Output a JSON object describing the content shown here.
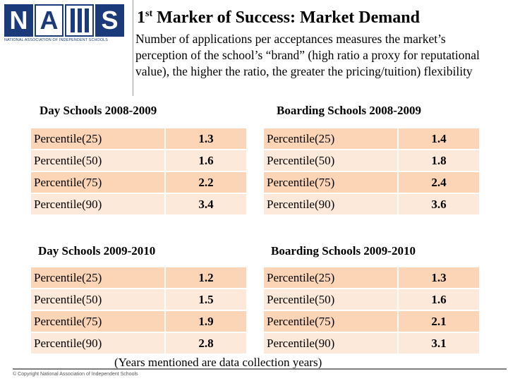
{
  "logo": {
    "letters": [
      "N",
      "A",
      "S"
    ],
    "tagline": "NATIONAL ASSOCIATION OF INDEPENDENT SCHOOLS"
  },
  "title": {
    "ordinal": "1",
    "suffix": "st",
    "rest": " Marker of Success: Market Demand"
  },
  "description": "Number of applications per acceptances measures the market’s perception of the school’s “brand” (high ratio a proxy for reputational value), the higher the ratio, the greater the pricing/tuition) flexibility",
  "sections": {
    "day_2008": {
      "label": "Day Schools  2008-2009",
      "rows": [
        {
          "label": "Percentile(25)",
          "value": "1.3"
        },
        {
          "label": "Percentile(50)",
          "value": "1.6"
        },
        {
          "label": "Percentile(75)",
          "value": "2.2"
        },
        {
          "label": "Percentile(90)",
          "value": "3.4"
        }
      ]
    },
    "boarding_2008": {
      "label": "Boarding Schools  2008-2009",
      "rows": [
        {
          "label": "Percentile(25)",
          "value": "1.4"
        },
        {
          "label": "Percentile(50)",
          "value": "1.8"
        },
        {
          "label": "Percentile(75)",
          "value": "2.4"
        },
        {
          "label": "Percentile(90)",
          "value": "3.6"
        }
      ]
    },
    "day_2009": {
      "label": "Day Schools  2009-2010",
      "rows": [
        {
          "label": "Percentile(25)",
          "value": "1.2"
        },
        {
          "label": "Percentile(50)",
          "value": "1.5"
        },
        {
          "label": "Percentile(75)",
          "value": "1.9"
        },
        {
          "label": "Percentile(90)",
          "value": "2.8"
        }
      ]
    },
    "boarding_2009": {
      "label": "Boarding Schools  2009-2010",
      "rows": [
        {
          "label": "Percentile(25)",
          "value": "1.3"
        },
        {
          "label": "Percentile(50)",
          "value": "1.6"
        },
        {
          "label": "Percentile(75)",
          "value": "2.1"
        },
        {
          "label": "Percentile(90)",
          "value": "3.1"
        }
      ]
    }
  },
  "note": "(Years mentioned are data collection years)",
  "copyright": "© Copyright National Association of Independent Schools",
  "colors": {
    "brand_blue": "#1a3a7a",
    "brand_red": "#c00000",
    "row_dark": "#fbd5b5",
    "row_light": "#fde9d9"
  }
}
